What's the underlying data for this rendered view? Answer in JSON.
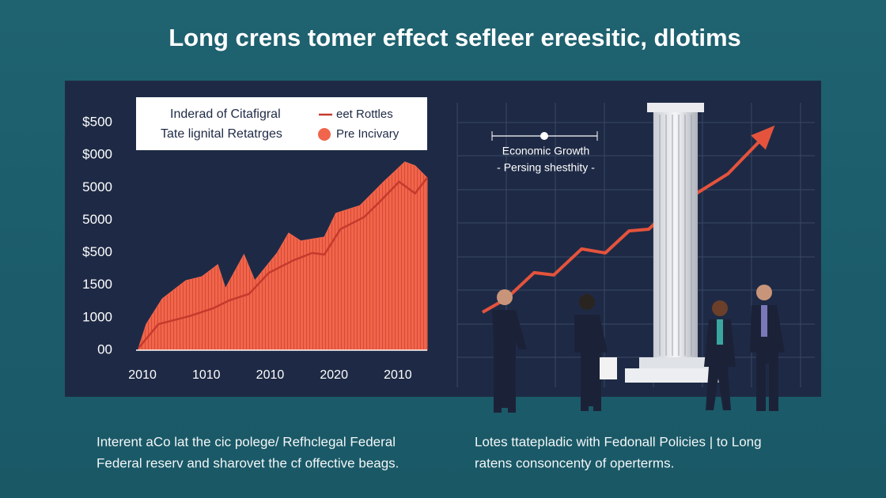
{
  "title": "Long crens tomer effect sefleer ereesitic, dlotims",
  "captions": [
    [
      "Interent  aCo lat the cic polege/ Refhclegal Federal",
      "Federal reserv and sharovet the cf offective beags."
    ],
    [
      "Lotes ttatepladic with Fedonall Policies | to Long",
      "ratens consoncenty of operterms."
    ]
  ],
  "chart_data": [
    {
      "type": "area",
      "legend_title": [
        "Inderad of Citafigral",
        "Tate lignital Retatrges"
      ],
      "xlim": [
        -0.1,
        4.46
      ],
      "xticks": [
        {
          "value": 0,
          "label": "2010"
        },
        {
          "value": 1,
          "label": "1010"
        },
        {
          "value": 2,
          "label": "2010"
        },
        {
          "value": 3,
          "label": "2020"
        },
        {
          "value": 4,
          "label": "2010"
        }
      ],
      "ylim": [
        0,
        7
      ],
      "yticks": [
        {
          "value": 0,
          "label": "00"
        },
        {
          "value": 1,
          "label": "1000"
        },
        {
          "value": 2,
          "label": "1500"
        },
        {
          "value": 3,
          "label": "$500"
        },
        {
          "value": 4,
          "label": "5000"
        },
        {
          "value": 5,
          "label": "5000"
        },
        {
          "value": 6,
          "label": "$000"
        },
        {
          "value": 7,
          "label": "$500"
        }
      ],
      "series": [
        {
          "name": "Pre Incivary",
          "type": "area",
          "color": "#f0654c",
          "x": [
            -0.06,
            0.06,
            0.31,
            0.68,
            0.93,
            1.18,
            1.3,
            1.59,
            1.76,
            2.11,
            2.29,
            2.48,
            2.85,
            3.03,
            3.41,
            3.78,
            4.11,
            4.27,
            4.46
          ],
          "values": [
            0.07,
            0.8,
            1.58,
            2.14,
            2.26,
            2.63,
            1.9,
            2.94,
            2.14,
            2.99,
            3.6,
            3.36,
            3.48,
            4.21,
            4.45,
            5.18,
            5.79,
            5.67,
            5.3
          ]
        },
        {
          "name": "eet Rottles",
          "type": "line",
          "color": "#c43a2c",
          "x": [
            -0.06,
            0.25,
            0.74,
            1.11,
            1.36,
            1.67,
            1.98,
            2.35,
            2.66,
            2.85,
            3.1,
            3.47,
            3.72,
            4.02,
            4.27,
            4.46
          ],
          "values": [
            0.07,
            0.8,
            1.05,
            1.29,
            1.53,
            1.73,
            2.38,
            2.75,
            2.99,
            2.94,
            3.72,
            4.09,
            4.57,
            5.18,
            4.82,
            5.3
          ]
        }
      ]
    },
    {
      "type": "line",
      "annotations": [
        "Economic Growth",
        "- Persing shesthity -"
      ],
      "color": "#e5533c",
      "xlim": [
        0,
        10
      ],
      "ylim": [
        0,
        10
      ],
      "x": [
        0.25,
        1,
        1.88,
        2.5,
        3.38,
        4.13,
        4.88,
        5.5,
        6.25,
        7,
        8,
        9.38
      ],
      "values": [
        1.9,
        2.47,
        3.57,
        3.47,
        4.57,
        4.4,
        5.33,
        5.4,
        6.33,
        6.9,
        7.73,
        9.63
      ]
    }
  ]
}
